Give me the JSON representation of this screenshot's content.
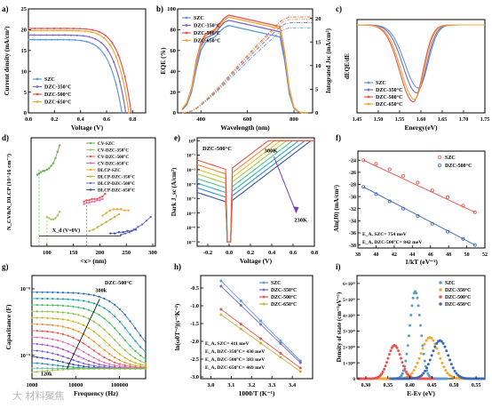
{
  "watermark": "大 材料聚焦",
  "chart_data": [
    {
      "panel": "a)",
      "type": "line",
      "xlabel": "Voltage (V)",
      "ylabel": "Current density (mA/cm²)",
      "xlim": [
        0,
        0.9
      ],
      "ylim": [
        0,
        25
      ],
      "xticks": [
        "0.0",
        "0.2",
        "0.4",
        "0.6",
        "0.8"
      ],
      "yticks": [
        "0",
        "5",
        "10",
        "15",
        "20",
        "25"
      ],
      "legend": "bottom-left",
      "series": [
        {
          "name": "SZC",
          "color": "#5b9bd5",
          "jsc": 17.6,
          "voc": 0.718,
          "n": 2.2
        },
        {
          "name": "DZC-350°C",
          "color": "#7b68c8",
          "jsc": 18.7,
          "voc": 0.748,
          "n": 2.0
        },
        {
          "name": "DZC-500°C",
          "color": "#e8524f",
          "jsc": 20.3,
          "voc": 0.79,
          "n": 1.7
        },
        {
          "name": "DZC-650°C",
          "color": "#f0a830",
          "jsc": 19.8,
          "voc": 0.771,
          "n": 1.8
        }
      ]
    },
    {
      "panel": "b)",
      "type": "line",
      "xlabel": "Wavelength (nm)",
      "ylabel": "EQE (%)",
      "y2label": "Integrated Jsc (mA/cm²)",
      "xlim": [
        300,
        880
      ],
      "ylim": [
        0,
        100
      ],
      "y2lim": [
        0,
        22
      ],
      "xticks": [
        "400",
        "600",
        "800"
      ],
      "yticks": [
        "0",
        "20",
        "40",
        "60",
        "80",
        "100"
      ],
      "y2ticks": [
        "0",
        "5",
        "10",
        "15",
        "20"
      ],
      "legend": "top-left",
      "x": [
        320,
        340,
        360,
        380,
        400,
        420,
        440,
        460,
        480,
        500,
        520,
        540,
        560,
        580,
        600,
        620,
        640,
        660,
        680,
        700,
        720,
        740,
        760,
        780,
        800,
        820,
        840,
        860
      ],
      "series": [
        {
          "name": "SZC",
          "color": "#5b9bd5",
          "values": [
            3,
            8,
            20,
            42,
            60,
            68,
            71,
            73,
            78,
            82,
            84,
            83,
            82,
            81,
            80,
            79,
            78,
            77,
            76,
            75,
            74,
            73,
            50,
            18,
            4,
            1,
            0,
            0
          ]
        },
        {
          "name": "DZC-350°C",
          "color": "#7b68c8",
          "values": [
            3,
            9,
            22,
            46,
            64,
            72,
            74,
            76,
            82,
            87,
            89,
            88,
            87,
            86,
            85,
            84,
            83,
            82,
            81,
            80,
            79,
            78,
            54,
            20,
            5,
            1,
            0,
            0
          ]
        },
        {
          "name": "DZC-500°C",
          "color": "#e8524f",
          "values": [
            4,
            10,
            24,
            50,
            68,
            76,
            78,
            80,
            86,
            91,
            94,
            93,
            92,
            91,
            90,
            89,
            88,
            87,
            86,
            85,
            84,
            83,
            58,
            23,
            5,
            1,
            0,
            0
          ]
        },
        {
          "name": "DZC-650°C",
          "color": "#f0a830",
          "values": [
            4,
            10,
            23,
            48,
            66,
            74,
            77,
            79,
            84,
            89,
            92,
            91,
            90,
            89,
            88,
            87,
            86,
            85,
            84,
            83,
            82,
            81,
            57,
            22,
            5,
            1,
            0,
            0
          ]
        }
      ]
    },
    {
      "panel": "c)",
      "type": "line",
      "xlabel": "Energy(eV)",
      "ylabel": "dEQE/dE",
      "xlim": [
        1.45,
        1.75
      ],
      "xticks": [
        "1.45",
        "1.50",
        "1.55",
        "1.60",
        "1.65",
        "1.70",
        "1.75"
      ],
      "legend": "bottom-left",
      "series": [
        {
          "name": "SZC",
          "color": "#5b9bd5",
          "center": 1.594,
          "depth": 0.78
        },
        {
          "name": "DZC-350°C",
          "color": "#7b68c8",
          "center": 1.59,
          "depth": 0.84
        },
        {
          "name": "DZC-500°C",
          "color": "#e8524f",
          "center": 1.582,
          "depth": 0.95
        },
        {
          "name": "DZC-650°C",
          "color": "#f0a830",
          "center": 1.585,
          "depth": 0.92
        }
      ]
    },
    {
      "panel": "d)",
      "type": "line",
      "xlabel": "<x> (nm)",
      "ylabel": "N_CV&N_DLCP (10^16 cm⁻³)",
      "xlim": [
        70,
        305
      ],
      "ylim": [
        0,
        8.5
      ],
      "xticks": [
        "100",
        "150",
        "200",
        "250",
        "300"
      ],
      "annotation": "X_d (V=0V)",
      "legend": "top-right",
      "series": [
        {
          "name": "CV-SZC",
          "color": "#6ab04c",
          "x": [
            82,
            85,
            88,
            92,
            95,
            100,
            104,
            108,
            112,
            116,
            120,
            124
          ],
          "values": [
            5.6,
            5.7,
            5.8,
            5.9,
            5.9,
            6.0,
            6.1,
            6.3,
            6.5,
            6.9,
            7.4,
            7.9
          ]
        },
        {
          "name": "CV-DZC-350°C",
          "color": "#9ccc65",
          "x": [
            100,
            104,
            108,
            112,
            116,
            120,
            124
          ],
          "values": [
            2.3,
            2.2,
            2.1,
            2.1,
            2.2,
            2.4,
            2.7
          ]
        },
        {
          "name": "CV-DZC-500°C",
          "color": "#e8524f",
          "x": [
            170,
            175,
            180,
            185,
            190,
            195,
            200,
            205,
            210
          ],
          "values": [
            3.5,
            3.6,
            3.6,
            3.7,
            3.7,
            3.7,
            3.8,
            3.9,
            4.1
          ]
        },
        {
          "name": "CV-DZC-650°C",
          "color": "#e06fa8",
          "x": [
            170,
            175,
            180,
            185,
            190,
            195,
            200,
            205
          ],
          "values": [
            3.3,
            3.4,
            3.4,
            3.5,
            3.5,
            3.6,
            3.6,
            3.7
          ]
        },
        {
          "name": "DLCP-SZC",
          "color": "#f0a830",
          "x": [
            205,
            212,
            219,
            226,
            233,
            240,
            247,
            254
          ],
          "values": [
            2.4,
            2.6,
            2.8,
            2.9,
            2.9,
            2.9,
            2.8,
            2.8
          ]
        },
        {
          "name": "DLCP-DZC-350°C",
          "color": "#c9b037",
          "x": [
            180,
            188,
            196,
            204,
            212,
            220,
            228,
            236
          ],
          "values": [
            1.2,
            1.3,
            1.5,
            1.7,
            1.9,
            2.1,
            2.3,
            2.5
          ]
        },
        {
          "name": "DLCP-DZC-500°C",
          "color": "#7b68c8",
          "x": [
            240,
            248,
            256,
            264,
            272,
            280,
            288,
            296
          ],
          "values": [
            0.9,
            1.0,
            1.1,
            1.3,
            1.5,
            1.7,
            2.0,
            2.3
          ]
        },
        {
          "name": "DLCP-DZC-650°C",
          "color": "#3a53a4",
          "x": [
            220,
            228,
            236,
            244,
            252,
            260,
            268
          ],
          "values": [
            1.0,
            1.0,
            1.1,
            1.1,
            1.2,
            1.2,
            1.3
          ]
        }
      ]
    },
    {
      "panel": "e)",
      "type": "line",
      "title": "DZC-500°C",
      "xlabel": "Voltage (V)",
      "ylabel": "Dark J_sc (A/cm²)",
      "xlim": [
        -0.3,
        0.8
      ],
      "xticks": [
        "-0.2",
        "0.0",
        "0.2",
        "0.4",
        "0.6",
        "0.8"
      ],
      "yticks": [
        "10⁻⁷",
        "10⁻⁶",
        "10⁻⁵",
        "10⁻⁴",
        "10⁻³",
        "10⁻²",
        "10⁻¹",
        "10⁰"
      ],
      "ylog": true,
      "annotations": [
        "300K",
        "230K"
      ],
      "temperatures_K": [
        230,
        240,
        250,
        260,
        270,
        280,
        290,
        300
      ]
    },
    {
      "panel": "f)",
      "type": "scatter",
      "xlabel": "1/kT (eV⁻¹)",
      "ylabel": "Aln(J0) (mA/cm²)",
      "xlim": [
        38,
        52
      ],
      "ylim": [
        -38.5,
        -22.5
      ],
      "xticks": [
        "38",
        "40",
        "42",
        "44",
        "46",
        "48",
        "50",
        "52"
      ],
      "yticks": [
        "-38",
        "-36",
        "-34",
        "-32",
        "-30",
        "-28",
        "-26",
        "-24"
      ],
      "legend": "top-right",
      "annotations": [
        "E_A, SZC= 754 meV",
        "E_A, DZC-500°C= 842 meV"
      ],
      "series": [
        {
          "name": "SZC",
          "color": "#e8524f",
          "x": [
            38.6,
            40.0,
            41.5,
            43.0,
            44.6,
            46.2,
            47.9,
            49.6,
            50.9
          ],
          "values": [
            -24.0,
            -24.6,
            -25.5,
            -26.6,
            -27.7,
            -29.0,
            -30.1,
            -31.5,
            -32.6
          ]
        },
        {
          "name": "DZC-500°C",
          "color": "#3a68b4",
          "x": [
            38.6,
            40.0,
            41.5,
            43.0,
            44.6,
            46.2,
            47.9,
            49.6,
            50.9
          ],
          "values": [
            -28.4,
            -29.6,
            -30.8,
            -32.0,
            -33.2,
            -34.5,
            -35.8,
            -37.0,
            -38.0
          ]
        }
      ]
    },
    {
      "panel": "g)",
      "type": "line",
      "title": "DZC-500°C",
      "xlabel": "Frequency (Hz)",
      "ylabel": "Capacitance (F)",
      "xlog": true,
      "ylog": true,
      "xticks": [
        "1000",
        "10000",
        "100000"
      ],
      "yticks": [
        "10⁻⁹",
        "10⁻⁸"
      ],
      "annotations": [
        "300k",
        "120k"
      ]
    },
    {
      "panel": "h)",
      "type": "scatter",
      "xlabel": "1000/T (K⁻¹)",
      "ylabel": "ln(ω0T⁻²)(s⁻¹K⁻²)",
      "xlim": [
        2.95,
        3.5
      ],
      "ylim": [
        -3.05,
        -0.15
      ],
      "xticks": [
        "3.0",
        "3.1",
        "3.2",
        "3.3",
        "3.4"
      ],
      "yticks": [
        "-0.5",
        "-1.0",
        "-1.5",
        "-2.0",
        "-2.5",
        "-3.0"
      ],
      "legend": "top-right",
      "annotations": [
        "E_A, SZC= 411 meV",
        "E_A, DZC-350°C= 430 meV",
        "E_A, DZC-500°C= 383 meV",
        "E_A, DZC-650°C= 469 meV"
      ],
      "series": [
        {
          "name": "SZC",
          "color": "#5b9bd5",
          "x": [
            3.05,
            3.44
          ],
          "values": [
            -0.3,
            -2.55
          ]
        },
        {
          "name": "DZC-350°C",
          "color": "#7b68c8",
          "x": [
            3.05,
            3.44
          ],
          "values": [
            -0.45,
            -2.6
          ]
        },
        {
          "name": "DZC-500°C",
          "color": "#e8524f",
          "x": [
            3.05,
            3.44
          ],
          "values": [
            -1.1,
            -2.75
          ]
        },
        {
          "name": "DZC-650°C",
          "color": "#c9b037",
          "x": [
            3.05,
            3.44
          ],
          "values": [
            -1.25,
            -2.85
          ]
        }
      ]
    },
    {
      "panel": "i)",
      "type": "scatter",
      "xlabel": "E-Ev (eV)",
      "ylabel": "Density of state (cm⁻³eV⁻¹)",
      "xlim": [
        0.28,
        0.57
      ],
      "ylim": [
        0,
        6.5
      ],
      "xticks": [
        "0.30",
        "0.35",
        "0.40",
        "0.45",
        "0.50",
        "0.55"
      ],
      "yticks": [
        "0",
        "1×10¹⁸",
        "2×10¹⁸",
        "3×10¹⁸",
        "4×10¹⁸",
        "5×10¹⁸",
        "6×10¹⁸"
      ],
      "legend": "top-right",
      "series": [
        {
          "name": "SZC",
          "color": "#5b9bd5",
          "center": 0.412,
          "peak": 5.5,
          "width": 0.018
        },
        {
          "name": "DZC-350°C",
          "color": "#f0a830",
          "center": 0.445,
          "peak": 2.6,
          "width": 0.03
        },
        {
          "name": "DZC-500°C",
          "color": "#e8524f",
          "center": 0.365,
          "peak": 2.1,
          "width": 0.022
        },
        {
          "name": "DZC-650°C",
          "color": "#3a68b4",
          "center": 0.468,
          "peak": 2.4,
          "width": 0.028
        }
      ]
    }
  ]
}
